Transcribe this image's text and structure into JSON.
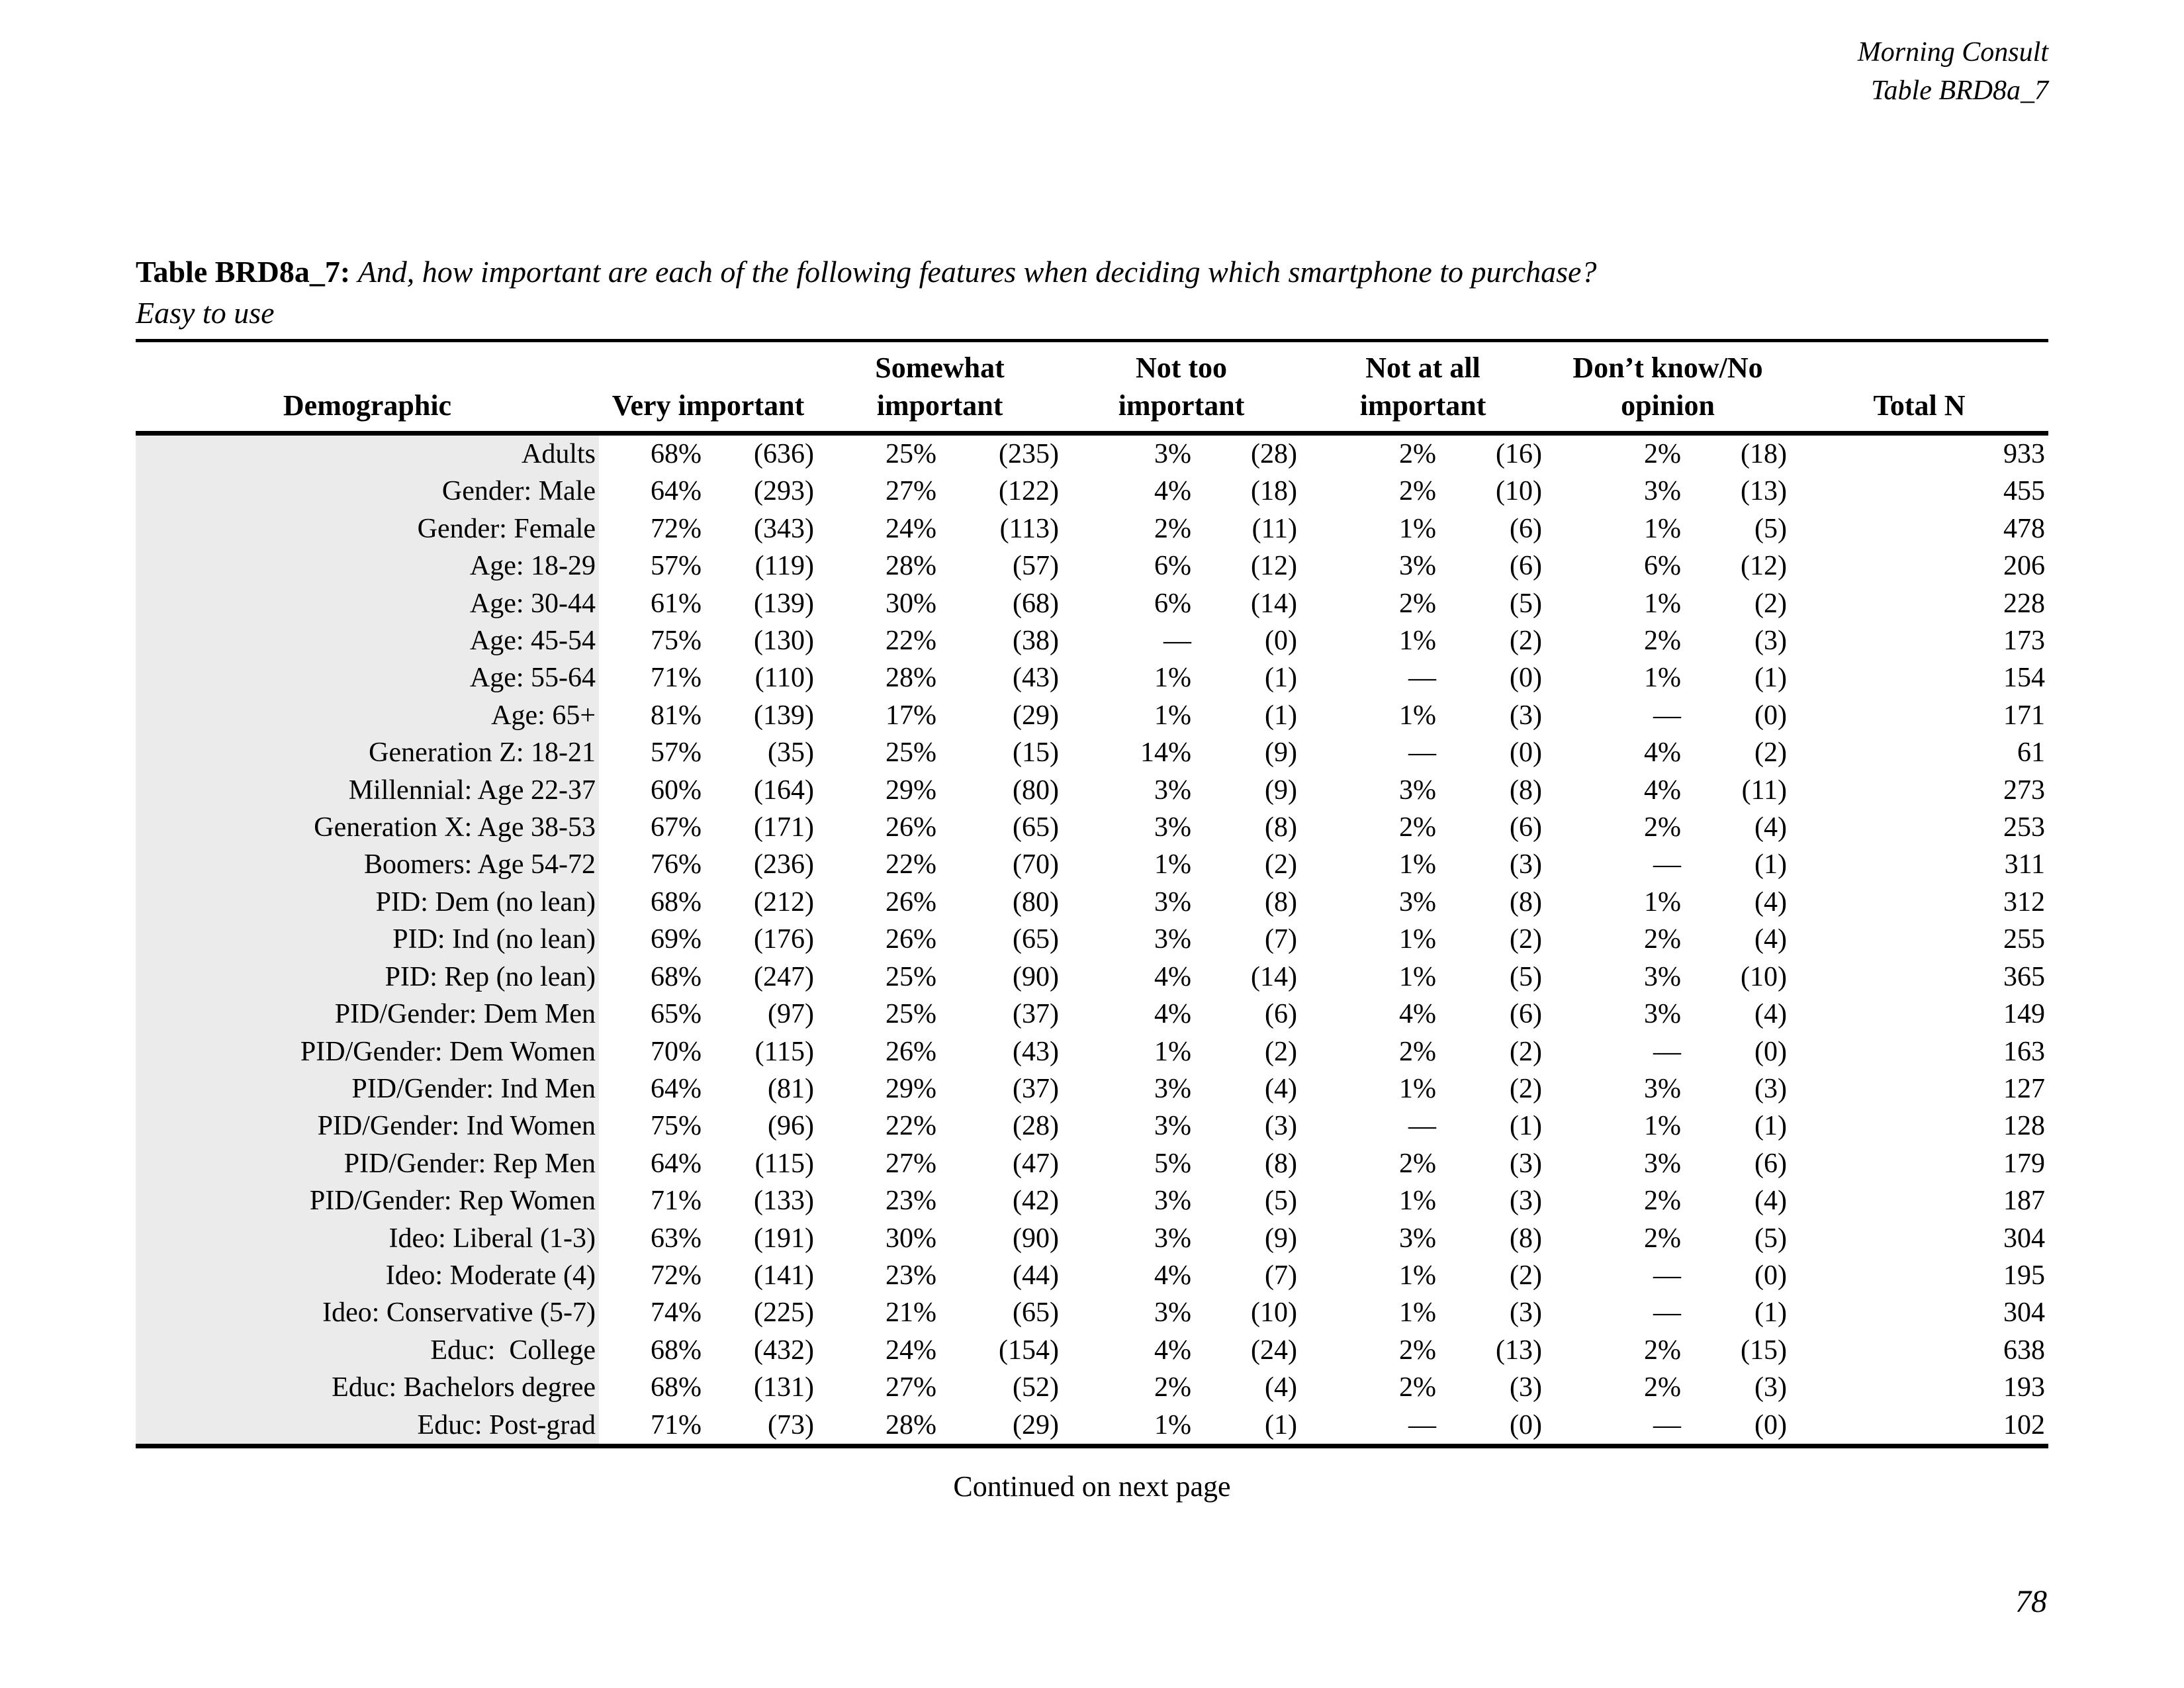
{
  "header": {
    "line1": "Morning Consult",
    "line2": "Table BRD8a_7"
  },
  "title": {
    "label": "Table BRD8a_7:",
    "question": "And, how important are each of the following features when deciding which smartphone to purchase?",
    "subtitle": "Easy to use"
  },
  "table": {
    "columns": {
      "demographic": {
        "line1": "",
        "line2": "Demographic"
      },
      "very": {
        "line1": "",
        "line2": "Very important"
      },
      "somewhat": {
        "line1": "Somewhat",
        "line2": "important"
      },
      "not_too": {
        "line1": "Not too",
        "line2": "important"
      },
      "not_at_all": {
        "line1": "Not at all",
        "line2": "important"
      },
      "dk": {
        "line1": "Don’t know/No",
        "line2": "opinion"
      },
      "total": {
        "line1": "",
        "line2": "Total N"
      }
    },
    "rows": [
      [
        "Adults",
        "68%",
        "(636)",
        "25%",
        "(235)",
        "3%",
        "(28)",
        "2%",
        "(16)",
        "2%",
        "(18)",
        "933"
      ],
      [
        "Gender: Male",
        "64%",
        "(293)",
        "27%",
        "(122)",
        "4%",
        "(18)",
        "2%",
        "(10)",
        "3%",
        "(13)",
        "455"
      ],
      [
        "Gender: Female",
        "72%",
        "(343)",
        "24%",
        "(113)",
        "2%",
        "(11)",
        "1%",
        "(6)",
        "1%",
        "(5)",
        "478"
      ],
      [
        "Age: 18-29",
        "57%",
        "(119)",
        "28%",
        "(57)",
        "6%",
        "(12)",
        "3%",
        "(6)",
        "6%",
        "(12)",
        "206"
      ],
      [
        "Age: 30-44",
        "61%",
        "(139)",
        "30%",
        "(68)",
        "6%",
        "(14)",
        "2%",
        "(5)",
        "1%",
        "(2)",
        "228"
      ],
      [
        "Age: 45-54",
        "75%",
        "(130)",
        "22%",
        "(38)",
        "—",
        "(0)",
        "1%",
        "(2)",
        "2%",
        "(3)",
        "173"
      ],
      [
        "Age: 55-64",
        "71%",
        "(110)",
        "28%",
        "(43)",
        "1%",
        "(1)",
        "—",
        "(0)",
        "1%",
        "(1)",
        "154"
      ],
      [
        "Age: 65+",
        "81%",
        "(139)",
        "17%",
        "(29)",
        "1%",
        "(1)",
        "1%",
        "(3)",
        "—",
        "(0)",
        "171"
      ],
      [
        "Generation Z: 18-21",
        "57%",
        "(35)",
        "25%",
        "(15)",
        "14%",
        "(9)",
        "—",
        "(0)",
        "4%",
        "(2)",
        "61"
      ],
      [
        "Millennial: Age 22-37",
        "60%",
        "(164)",
        "29%",
        "(80)",
        "3%",
        "(9)",
        "3%",
        "(8)",
        "4%",
        "(11)",
        "273"
      ],
      [
        "Generation X: Age 38-53",
        "67%",
        "(171)",
        "26%",
        "(65)",
        "3%",
        "(8)",
        "2%",
        "(6)",
        "2%",
        "(4)",
        "253"
      ],
      [
        "Boomers: Age 54-72",
        "76%",
        "(236)",
        "22%",
        "(70)",
        "1%",
        "(2)",
        "1%",
        "(3)",
        "—",
        "(1)",
        "311"
      ],
      [
        "PID: Dem (no lean)",
        "68%",
        "(212)",
        "26%",
        "(80)",
        "3%",
        "(8)",
        "3%",
        "(8)",
        "1%",
        "(4)",
        "312"
      ],
      [
        "PID: Ind (no lean)",
        "69%",
        "(176)",
        "26%",
        "(65)",
        "3%",
        "(7)",
        "1%",
        "(2)",
        "2%",
        "(4)",
        "255"
      ],
      [
        "PID: Rep (no lean)",
        "68%",
        "(247)",
        "25%",
        "(90)",
        "4%",
        "(14)",
        "1%",
        "(5)",
        "3%",
        "(10)",
        "365"
      ],
      [
        "PID/Gender: Dem Men",
        "65%",
        "(97)",
        "25%",
        "(37)",
        "4%",
        "(6)",
        "4%",
        "(6)",
        "3%",
        "(4)",
        "149"
      ],
      [
        "PID/Gender: Dem Women",
        "70%",
        "(115)",
        "26%",
        "(43)",
        "1%",
        "(2)",
        "2%",
        "(2)",
        "—",
        "(0)",
        "163"
      ],
      [
        "PID/Gender: Ind Men",
        "64%",
        "(81)",
        "29%",
        "(37)",
        "3%",
        "(4)",
        "1%",
        "(2)",
        "3%",
        "(3)",
        "127"
      ],
      [
        "PID/Gender: Ind Women",
        "75%",
        "(96)",
        "22%",
        "(28)",
        "3%",
        "(3)",
        "—",
        "(1)",
        "1%",
        "(1)",
        "128"
      ],
      [
        "PID/Gender: Rep Men",
        "64%",
        "(115)",
        "27%",
        "(47)",
        "5%",
        "(8)",
        "2%",
        "(3)",
        "3%",
        "(6)",
        "179"
      ],
      [
        "PID/Gender: Rep Women",
        "71%",
        "(133)",
        "23%",
        "(42)",
        "3%",
        "(5)",
        "1%",
        "(3)",
        "2%",
        "(4)",
        "187"
      ],
      [
        "Ideo: Liberal (1-3)",
        "63%",
        "(191)",
        "30%",
        "(90)",
        "3%",
        "(9)",
        "3%",
        "(8)",
        "2%",
        "(5)",
        "304"
      ],
      [
        "Ideo: Moderate (4)",
        "72%",
        "(141)",
        "23%",
        "(44)",
        "4%",
        "(7)",
        "1%",
        "(2)",
        "—",
        "(0)",
        "195"
      ],
      [
        "Ideo: Conservative (5-7)",
        "74%",
        "(225)",
        "21%",
        "(65)",
        "3%",
        "(10)",
        "1%",
        "(3)",
        "—",
        "(1)",
        "304"
      ],
      [
        "Educ:  College",
        "68%",
        "(432)",
        "24%",
        "(154)",
        "4%",
        "(24)",
        "2%",
        "(13)",
        "2%",
        "(15)",
        "638"
      ],
      [
        "Educ: Bachelors degree",
        "68%",
        "(131)",
        "27%",
        "(52)",
        "2%",
        "(4)",
        "2%",
        "(3)",
        "2%",
        "(3)",
        "193"
      ],
      [
        "Educ: Post-grad",
        "71%",
        "(73)",
        "28%",
        "(29)",
        "1%",
        "(1)",
        "—",
        "(0)",
        "—",
        "(0)",
        "102"
      ]
    ]
  },
  "footer": {
    "continued": "Continued on next page",
    "page_number": "78"
  }
}
